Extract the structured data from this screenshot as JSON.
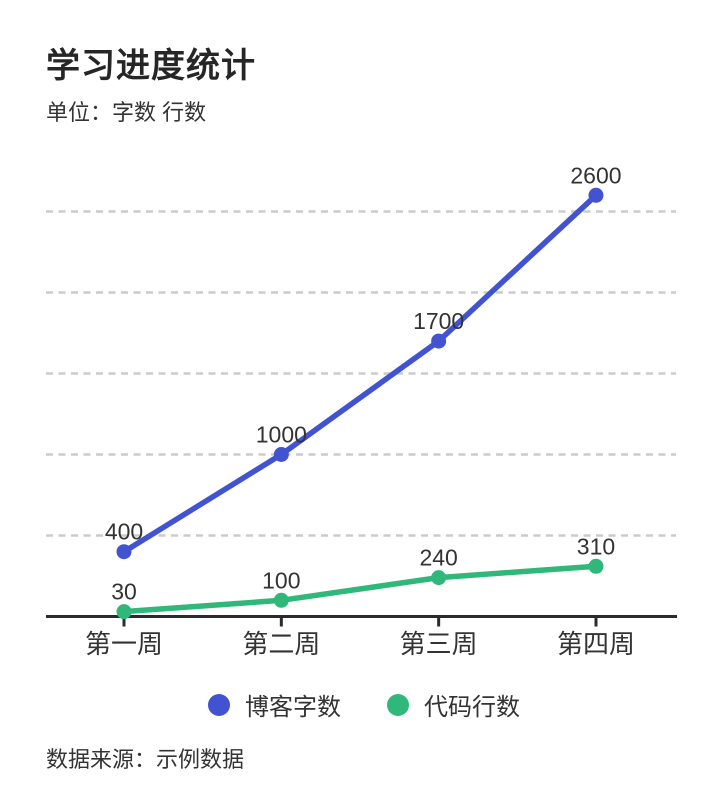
{
  "header": {
    "title": "学习进度统计",
    "subtitle": "单位：字数 行数"
  },
  "footer": {
    "source": "数据来源：示例数据"
  },
  "chart_data": {
    "type": "line",
    "title": "学习进度统计",
    "subtitle_unit": "单位：字数 行数",
    "categories": [
      "第一周",
      "第二周",
      "第三周",
      "第四周"
    ],
    "series": [
      {
        "name": "博客字数",
        "color": "#4253d1",
        "values": [
          400,
          1000,
          1700,
          2600
        ]
      },
      {
        "name": "代码行数",
        "color": "#2fb87a",
        "values": [
          30,
          100,
          240,
          310
        ]
      }
    ],
    "point_labels": true,
    "ylim": [
      0,
      2700
    ],
    "gridline_values": [
      500,
      1000,
      1500,
      2000,
      2500
    ],
    "grid": "dashed-horizontal",
    "legend_position": "bottom",
    "y_tick_labels_shown": false,
    "source": "数据来源：示例数据",
    "colors": {
      "gridline": "#cbcbcb",
      "axis": "#2b2b2b",
      "label_text": "#333333",
      "title_text": "#262626"
    }
  }
}
